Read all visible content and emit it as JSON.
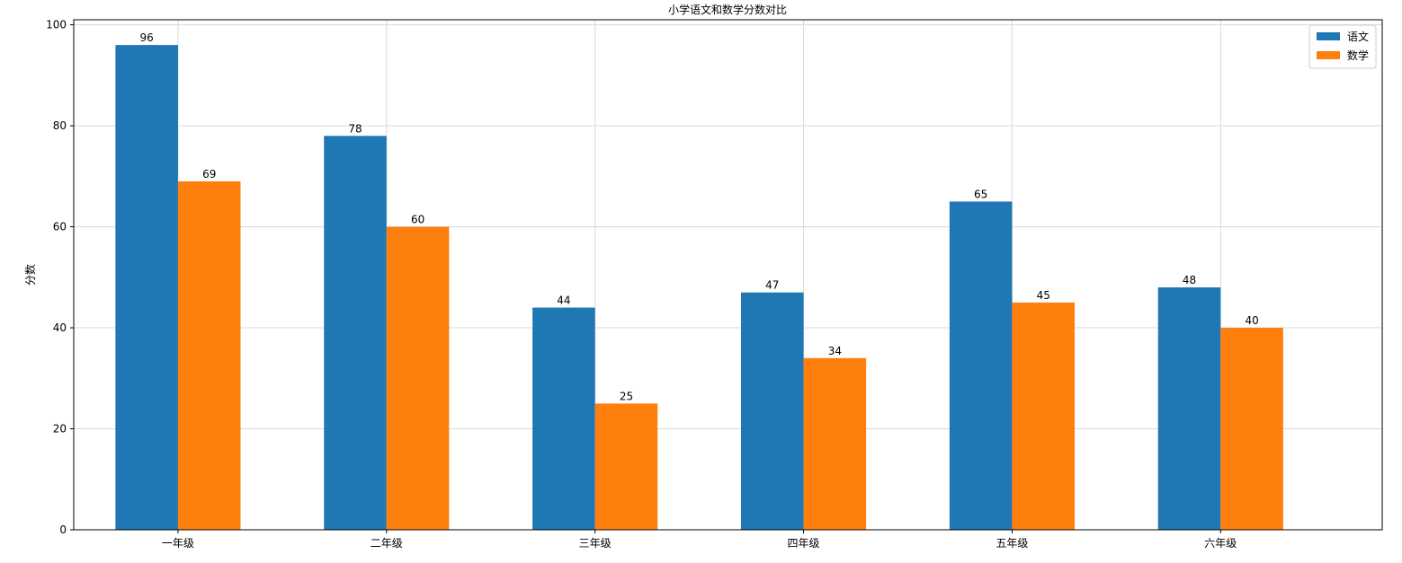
{
  "chart_data": {
    "type": "bar",
    "title": "小学语文和数学分数对比",
    "xlabel": "",
    "ylabel": "分数",
    "categories": [
      "一年级",
      "二年级",
      "三年级",
      "四年级",
      "五年级",
      "六年级"
    ],
    "series": [
      {
        "name": "语文",
        "color": "#1f77b4",
        "values": [
          96,
          78,
          44,
          47,
          65,
          48
        ]
      },
      {
        "name": "数学",
        "color": "#ff7f0e",
        "values": [
          69,
          60,
          25,
          34,
          45,
          40
        ]
      }
    ],
    "ylim": [
      0,
      101
    ],
    "yticks": [
      0,
      20,
      40,
      60,
      80,
      100
    ],
    "grid": true,
    "legend_position": "top-right"
  }
}
